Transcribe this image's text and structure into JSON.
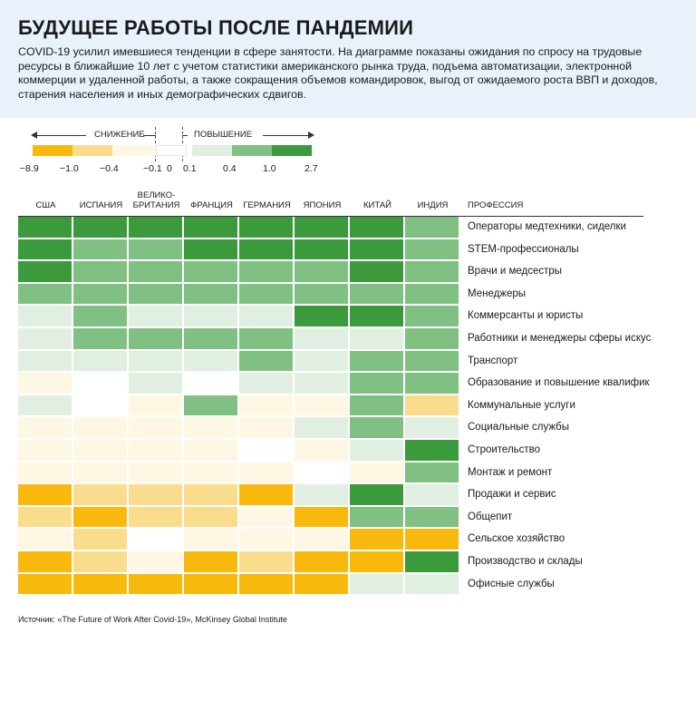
{
  "title": "БУДУЩЕЕ РАБОТЫ ПОСЛЕ ПАНДЕМИИ",
  "subtitle": "COVID-19 усилил имевшиеся тенденции в сфере занятости. На диаграмме показаны ожидания по спросу на трудовые ресурсы в ближайшие 10 лет с учетом статистики американского рынка труда, подъема автоматизации, электронной коммерции и удаленной работы, а также сокращения объемов командировок, выгод от ожидаемого роста ВВП и доходов, старения населения и иных демографических сдвигов.",
  "legend": {
    "decrease_label": "СНИЖЕНИЕ",
    "increase_label": "ПОВЫШЕНИЕ",
    "ticks": [
      "−8.9",
      "−1.0",
      "−0.4",
      "−0.1",
      "0",
      "0.1",
      "0.4",
      "1.0",
      "2.7"
    ],
    "colors": [
      "#f8b90c",
      "#fadd8c",
      "#fdf7e3",
      "#ffffff",
      "#e1efe2",
      "#80c083",
      "#3a9a3c"
    ]
  },
  "source": "Источник: «The Future of Work After Covid-19», McKinsey Global Institute",
  "chart_data": {
    "type": "heatmap",
    "columns": [
      "США",
      "ИСПАНИЯ",
      "ВЕЛИКО-\nБРИТАНИЯ",
      "ФРАНЦИЯ",
      "ГЕРМАНИЯ",
      "ЯПОНИЯ",
      "КИТАЙ",
      "ИНДИЯ"
    ],
    "row_header": "ПРОФЕССИЯ",
    "rows": [
      "Операторы медтехники, сиделки",
      "STEM-профессионалы",
      "Врачи и медсестры",
      "Менеджеры",
      "Коммерсанты и юристы",
      "Работники и менеджеры сферы искус",
      "Транспорт",
      "Образование и повышение квалифик",
      "Коммунальные услуги",
      "Социальные службы",
      "Строительство",
      "Монтаж и ремонт",
      "Продажи и сервис",
      "Общепит",
      "Сельское хозяйство",
      "Производство и склады",
      "Офисные службы"
    ],
    "categories_legend": [
      "−8.9 to −1.0",
      "−1.0 to −0.4",
      "−0.4 to −0.1",
      "−0.1 to 0.1",
      "0.1 to 0.4",
      "0.4 to 1.0",
      "1.0 to 2.7"
    ],
    "values": [
      [
        6,
        6,
        6,
        6,
        6,
        6,
        6,
        5
      ],
      [
        6,
        5,
        5,
        6,
        6,
        6,
        6,
        5
      ],
      [
        6,
        5,
        5,
        5,
        5,
        5,
        6,
        5
      ],
      [
        5,
        5,
        5,
        5,
        5,
        5,
        5,
        5
      ],
      [
        4,
        5,
        4,
        4,
        4,
        6,
        6,
        5
      ],
      [
        4,
        5,
        5,
        5,
        5,
        4,
        4,
        5
      ],
      [
        4,
        4,
        4,
        4,
        5,
        4,
        5,
        5
      ],
      [
        2,
        3,
        4,
        3,
        4,
        4,
        5,
        5
      ],
      [
        4,
        3,
        2,
        5,
        2,
        2,
        5,
        1
      ],
      [
        2,
        2,
        2,
        2,
        2,
        4,
        5,
        4
      ],
      [
        2,
        2,
        2,
        2,
        3,
        2,
        4,
        6
      ],
      [
        2,
        2,
        2,
        2,
        2,
        3,
        2,
        5
      ],
      [
        0,
        1,
        1,
        1,
        0,
        4,
        6,
        4
      ],
      [
        1,
        0,
        1,
        1,
        2,
        0,
        5,
        5
      ],
      [
        2,
        1,
        3,
        2,
        2,
        2,
        0,
        0
      ],
      [
        0,
        1,
        2,
        0,
        1,
        0,
        0,
        6
      ],
      [
        0,
        0,
        0,
        0,
        0,
        0,
        4,
        4
      ]
    ]
  }
}
